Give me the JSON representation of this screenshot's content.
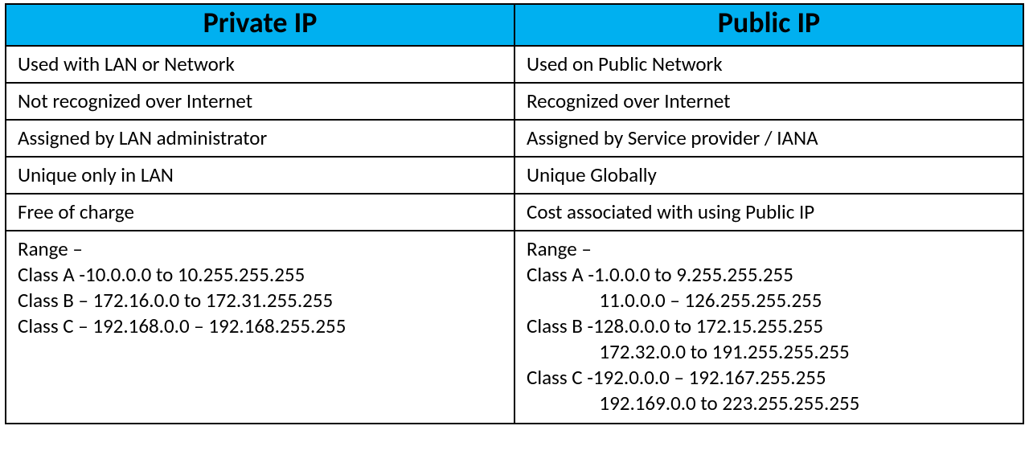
{
  "table": {
    "type": "table",
    "columns": [
      "Private IP",
      "Public IP"
    ],
    "header_bg": "#00b0f0",
    "header_text_color": "#000000",
    "border_color": "#000000",
    "background_color": "#ffffff",
    "cell_text_color": "#000000",
    "header_fontsize": 36,
    "cell_fontsize": 25,
    "rows": [
      [
        "Used with LAN or Network",
        "Used on Public Network"
      ],
      [
        "Not recognized over Internet",
        "Recognized over Internet"
      ],
      [
        "Assigned by LAN administrator",
        "Assigned by Service provider / IANA"
      ],
      [
        "Unique only in LAN",
        "Unique Globally"
      ],
      [
        "Free of charge",
        "Cost associated with using Public IP"
      ]
    ],
    "range_row": {
      "private": [
        "Range –",
        "Class A -10.0.0.0 to 10.255.255.255",
        "Class B – 172.16.0.0 to 172.31.255.255",
        "Class C – 192.168.0.0 – 192.168.255.255"
      ],
      "public": [
        "Range –",
        "Class A -1.0.0.0 to 9.255.255.255",
        "                11.0.0.0 – 126.255.255.255",
        "Class B -128.0.0.0 to 172.15.255.255",
        "                172.32.0.0 to 191.255.255.255",
        "Class C -192.0.0.0 – 192.167.255.255",
        "                192.169.0.0 to 223.255.255.255"
      ]
    }
  }
}
